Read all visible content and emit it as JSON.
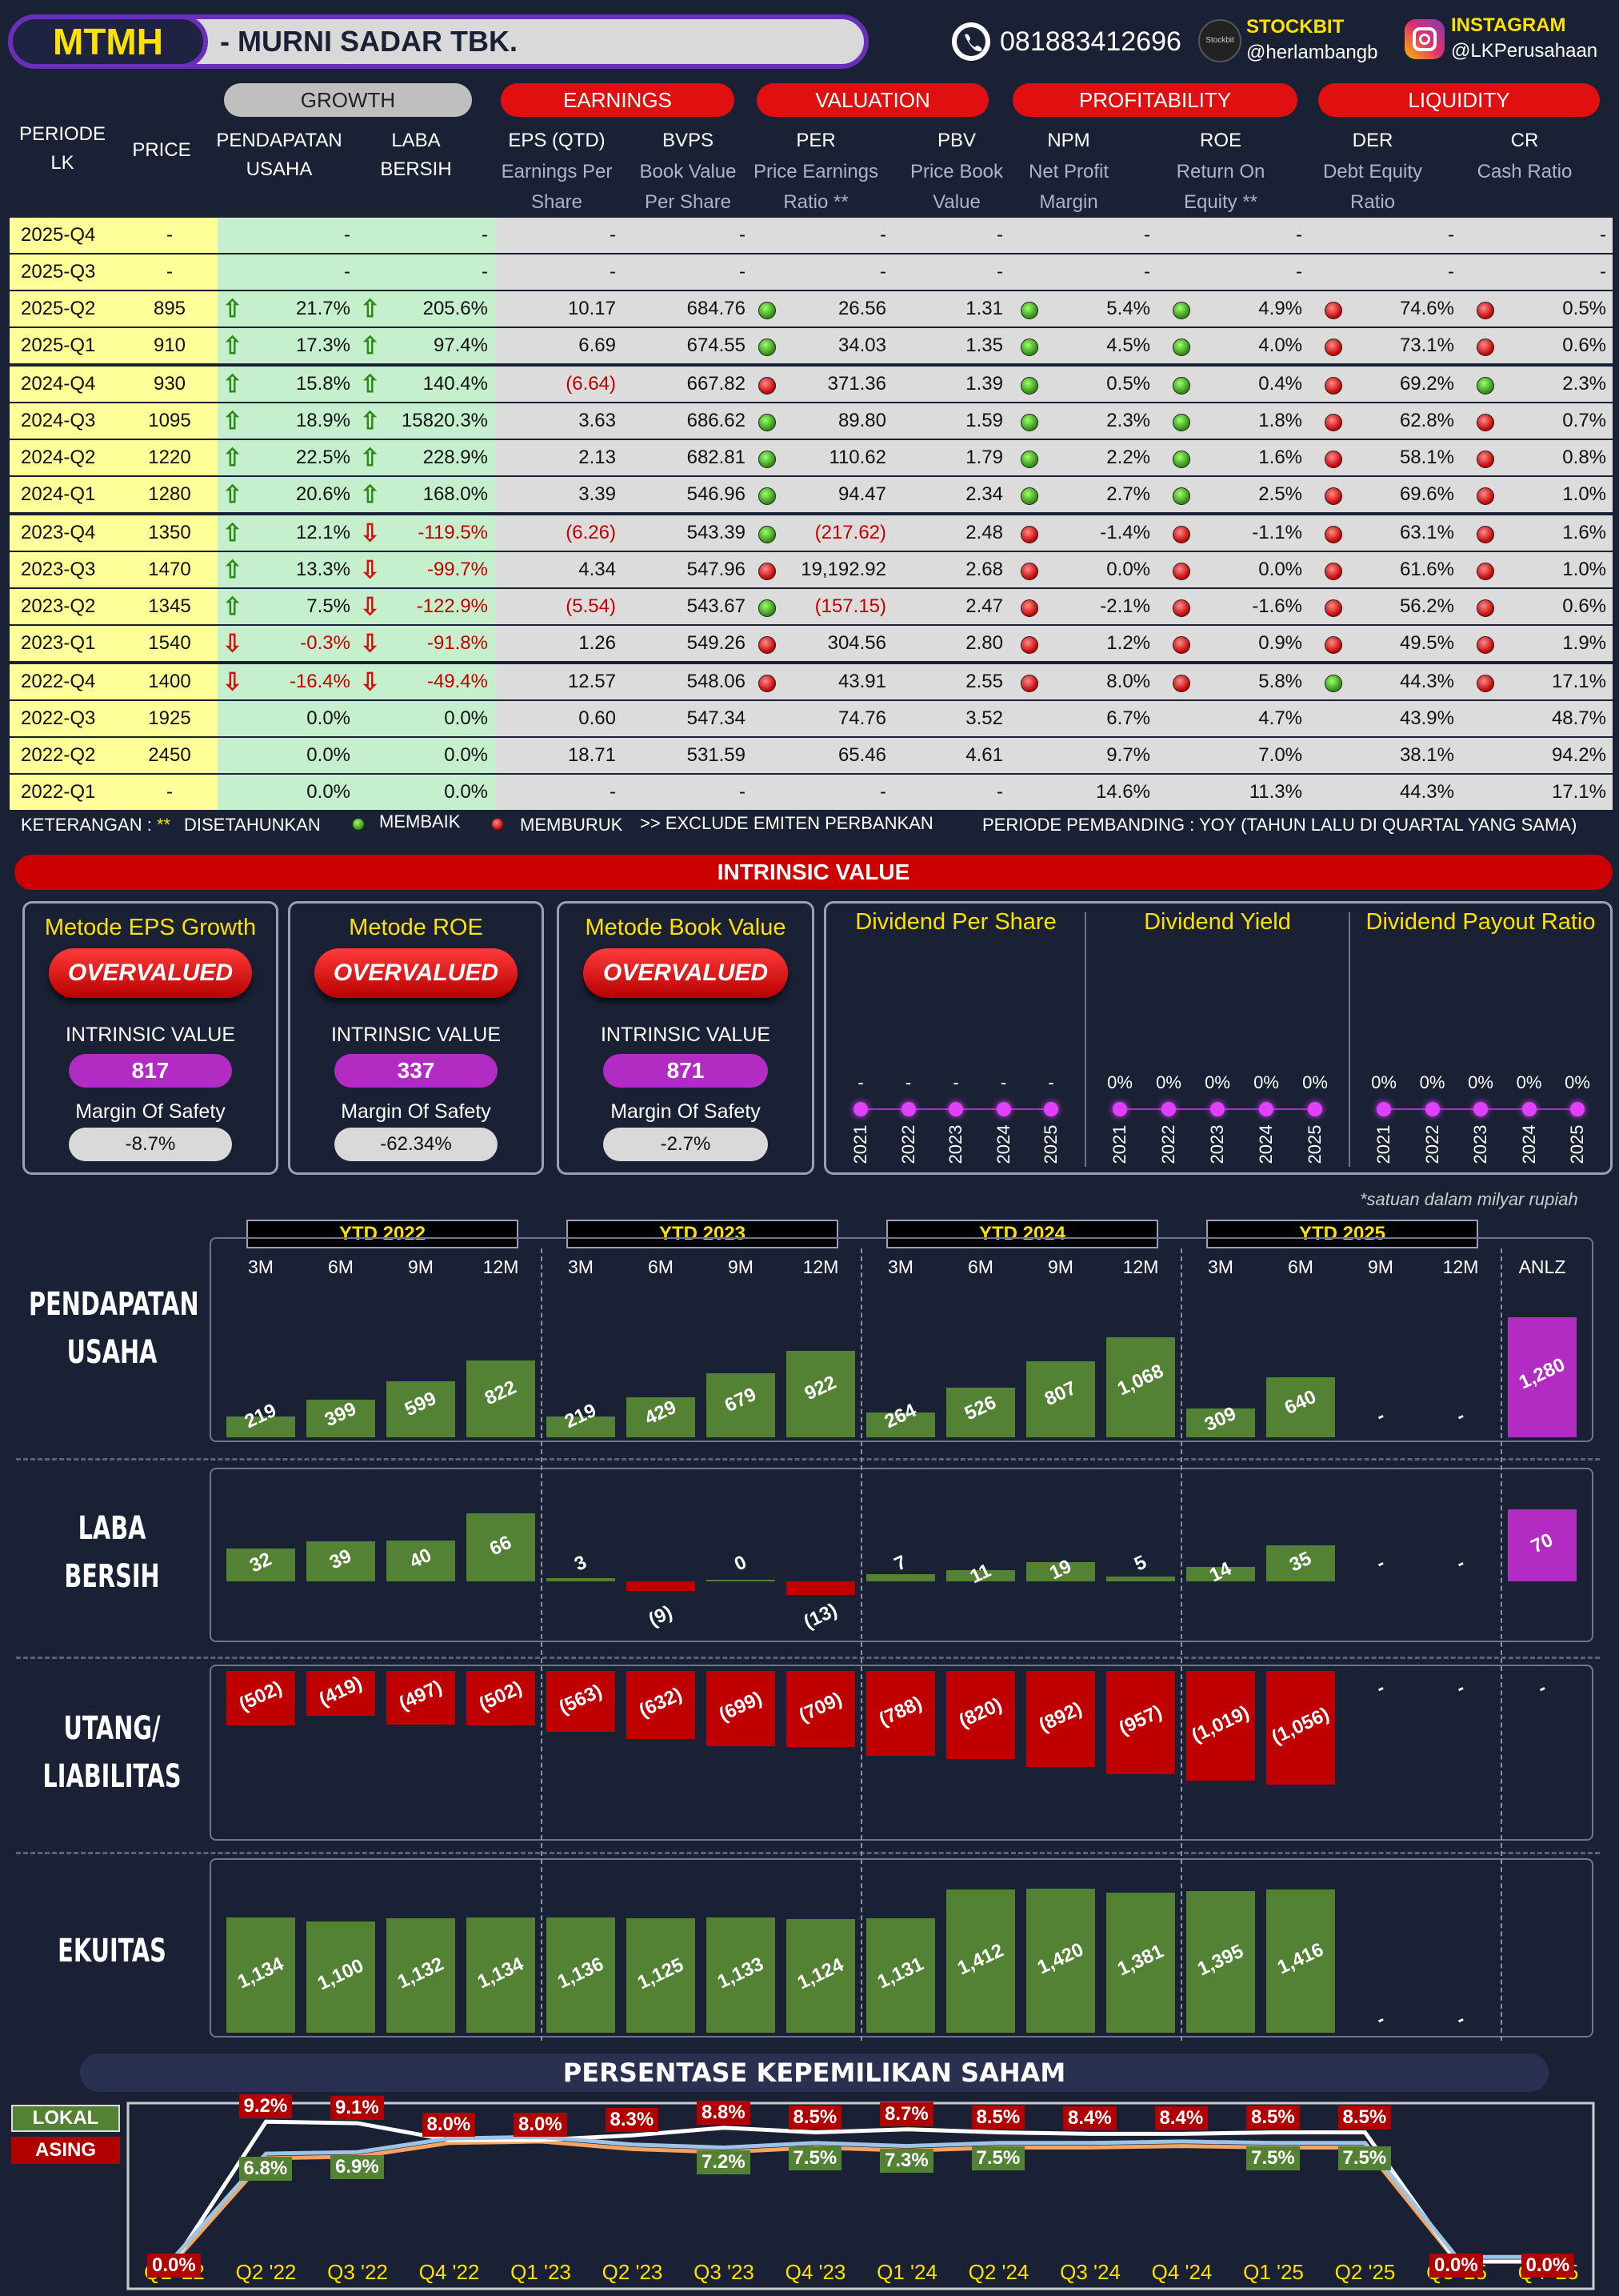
{
  "header": {
    "ticker": "MTMH",
    "company": "-  MURNI SADAR TBK.",
    "phone": "081883412696",
    "stockbit_label": "STOCKBIT",
    "stockbit_handle": "@herlambangb",
    "instagram_label": "INSTAGRAM",
    "instagram_handle": "@LKPerusahaan",
    "icons": [
      "whatsapp-icon",
      "stockbit-logo",
      "instagram-icon"
    ]
  },
  "table": {
    "groups": {
      "growth": "GROWTH",
      "earnings": "EARNINGS",
      "valuation": "VALUATION",
      "profitability": "PROFITABILITY",
      "liquidity": "LIQUIDITY"
    },
    "cols": {
      "periode": "PERIODE LK",
      "price": "PRICE",
      "pend": "PENDAPATAN USAHA",
      "laba": "LABA BERSIH",
      "eps": "EPS (QTD)",
      "eps_s": "Earnings Per Share",
      "bvps": "BVPS",
      "bvps_s": "Book Value Per Share",
      "per": "PER",
      "per_s": "Price Earnings Ratio **",
      "pbv": "PBV",
      "pbv_s": "Price Book Value",
      "npm": "NPM",
      "npm_s": "Net Profit Margin",
      "roe": "ROE",
      "roe_s": "Return On Equity **",
      "der": "DER",
      "der_s": "Debt Equity Ratio",
      "cr": "CR",
      "cr_s": "Cash Ratio"
    },
    "rows": [
      [
        "2025-Q4",
        "-",
        "",
        "-",
        "",
        "-",
        "-",
        "-",
        "",
        "-",
        "-",
        "",
        "-",
        "",
        "-",
        "",
        "-",
        "",
        "-"
      ],
      [
        "2025-Q3",
        "-",
        "",
        "-",
        "",
        "-",
        "-",
        "-",
        "",
        "-",
        "-",
        "",
        "-",
        "",
        "-",
        "",
        "-",
        "",
        "-"
      ],
      [
        "2025-Q2",
        "895",
        "u",
        "21.7%",
        "u",
        "205.6%",
        "10.17",
        "684.76",
        "g",
        "26.56",
        "1.31",
        "g",
        "5.4%",
        "g",
        "4.9%",
        "r",
        "74.6%",
        "r",
        "0.5%"
      ],
      [
        "2025-Q1",
        "910",
        "u",
        "17.3%",
        "u",
        "97.4%",
        "6.69",
        "674.55",
        "g",
        "34.03",
        "1.35",
        "g",
        "4.5%",
        "g",
        "4.0%",
        "r",
        "73.1%",
        "r",
        "0.6%"
      ],
      [
        "2024-Q4",
        "930",
        "u",
        "15.8%",
        "u",
        "140.4%",
        "(6.64)",
        "667.82",
        "r",
        "371.36",
        "1.39",
        "g",
        "0.5%",
        "g",
        "0.4%",
        "r",
        "69.2%",
        "g",
        "2.3%"
      ],
      [
        "2024-Q3",
        "1095",
        "u",
        "18.9%",
        "u",
        "15820.3%",
        "3.63",
        "686.62",
        "g",
        "89.80",
        "1.59",
        "g",
        "2.3%",
        "g",
        "1.8%",
        "r",
        "62.8%",
        "r",
        "0.7%"
      ],
      [
        "2024-Q2",
        "1220",
        "u",
        "22.5%",
        "u",
        "228.9%",
        "2.13",
        "682.81",
        "g",
        "110.62",
        "1.79",
        "g",
        "2.2%",
        "g",
        "1.6%",
        "r",
        "58.1%",
        "r",
        "0.8%"
      ],
      [
        "2024-Q1",
        "1280",
        "u",
        "20.6%",
        "u",
        "168.0%",
        "3.39",
        "546.96",
        "g",
        "94.47",
        "2.34",
        "g",
        "2.7%",
        "g",
        "2.5%",
        "r",
        "69.6%",
        "r",
        "1.0%"
      ],
      [
        "2023-Q4",
        "1350",
        "u",
        "12.1%",
        "d",
        "-119.5%",
        "(6.26)",
        "543.39",
        "g",
        "(217.62)",
        "2.48",
        "r",
        "-1.4%",
        "r",
        "-1.1%",
        "r",
        "63.1%",
        "r",
        "1.6%"
      ],
      [
        "2023-Q3",
        "1470",
        "u",
        "13.3%",
        "d",
        "-99.7%",
        "4.34",
        "547.96",
        "r",
        "19,192.92",
        "2.68",
        "r",
        "0.0%",
        "r",
        "0.0%",
        "r",
        "61.6%",
        "r",
        "1.0%"
      ],
      [
        "2023-Q2",
        "1345",
        "u",
        "7.5%",
        "d",
        "-122.9%",
        "(5.54)",
        "543.67",
        "g",
        "(157.15)",
        "2.47",
        "r",
        "-2.1%",
        "r",
        "-1.6%",
        "r",
        "56.2%",
        "r",
        "0.6%"
      ],
      [
        "2023-Q1",
        "1540",
        "d",
        "-0.3%",
        "d",
        "-91.8%",
        "1.26",
        "549.26",
        "r",
        "304.56",
        "2.80",
        "r",
        "1.2%",
        "r",
        "0.9%",
        "r",
        "49.5%",
        "r",
        "1.9%"
      ],
      [
        "2022-Q4",
        "1400",
        "d",
        "-16.4%",
        "d",
        "-49.4%",
        "12.57",
        "548.06",
        "r",
        "43.91",
        "2.55",
        "r",
        "8.0%",
        "r",
        "5.8%",
        "g",
        "44.3%",
        "r",
        "17.1%"
      ],
      [
        "2022-Q3",
        "1925",
        "",
        "0.0%",
        "",
        "0.0%",
        "0.60",
        "547.34",
        "",
        "74.76",
        "3.52",
        "",
        "6.7%",
        "",
        "4.7%",
        "",
        "43.9%",
        "",
        "48.7%"
      ],
      [
        "2022-Q2",
        "2450",
        "",
        "0.0%",
        "",
        "0.0%",
        "18.71",
        "531.59",
        "",
        "65.46",
        "4.61",
        "",
        "9.7%",
        "",
        "7.0%",
        "",
        "38.1%",
        "",
        "94.2%"
      ],
      [
        "2022-Q1",
        "-",
        "",
        "0.0%",
        "",
        "0.0%",
        "-",
        "-",
        "",
        "-",
        "-",
        "",
        "14.6%",
        "",
        "11.3%",
        "",
        "44.3%",
        "",
        "17.1%"
      ]
    ],
    "legend": {
      "k1": "KETERANGAN :",
      "k2": "**",
      "k3": "DISETAHUNKAN",
      "k4": "MEMBAIK",
      "k5": "MEMBURUK",
      "k6": ">> EXCLUDE EMITEN PERBANKAN",
      "k7": "PERIODE PEMBANDING : YOY (TAHUN LALU DI QUARTAL YANG SAMA)"
    }
  },
  "intrinsic": {
    "title": "INTRINSIC VALUE",
    "iv_label": "INTRINSIC VALUE",
    "mos_label": "Margin Of Safety",
    "cards": [
      {
        "title": "Metode EPS Growth",
        "status": "OVERVALUED",
        "iv": "817",
        "mos": "-8.7%"
      },
      {
        "title": "Metode ROE",
        "status": "OVERVALUED",
        "iv": "337",
        "mos": "-62.34%"
      },
      {
        "title": "Metode Book Value",
        "status": "OVERVALUED",
        "iv": "871",
        "mos": "-2.7%"
      }
    ],
    "dividend": [
      {
        "title": "Dividend Per Share",
        "vals": [
          "-",
          "-",
          "-",
          "-",
          "-"
        ]
      },
      {
        "title": "Dividend Yield",
        "vals": [
          "0%",
          "0%",
          "0%",
          "0%",
          "0%"
        ]
      },
      {
        "title": "Dividend Payout Ratio",
        "vals": [
          "0%",
          "0%",
          "0%",
          "0%",
          "0%"
        ]
      }
    ],
    "years": [
      "2021",
      "2022",
      "2023",
      "2024",
      "2025"
    ]
  },
  "fin": {
    "note": "*satuan dalam milyar rupiah",
    "ytd": [
      "YTD 2022",
      "YTD 2023",
      "YTD 2024",
      "YTD 2025"
    ],
    "periods": [
      "3M",
      "6M",
      "9M",
      "12M",
      "3M",
      "6M",
      "9M",
      "12M",
      "3M",
      "6M",
      "9M",
      "12M",
      "3M",
      "6M",
      "9M",
      "12M",
      "ANLZ"
    ],
    "labels": {
      "pend": "PENDAPATAN USAHA",
      "laba": "LABA BERSIH",
      "utang": "UTANG/ LIABILITAS",
      "ekuitas": "EKUITAS"
    },
    "pend": [
      "219",
      "399",
      "599",
      "822",
      "219",
      "429",
      "679",
      "922",
      "264",
      "526",
      "807",
      "1,068",
      "309",
      "640",
      "-",
      "-",
      "1,280"
    ],
    "pend_v": [
      219,
      399,
      599,
      822,
      219,
      429,
      679,
      922,
      264,
      526,
      807,
      1068,
      309,
      640,
      0,
      0,
      1280
    ],
    "laba": [
      "32",
      "39",
      "40",
      "66",
      "3",
      "(9)",
      "0",
      "(13)",
      "7",
      "11",
      "19",
      "5",
      "14",
      "35",
      "-",
      "-",
      "70"
    ],
    "laba_v": [
      32,
      39,
      40,
      66,
      3,
      -9,
      0,
      -13,
      7,
      11,
      19,
      5,
      14,
      35,
      0,
      0,
      70
    ],
    "utang": [
      "(502)",
      "(419)",
      "(497)",
      "(502)",
      "(563)",
      "(632)",
      "(699)",
      "(709)",
      "(788)",
      "(820)",
      "(892)",
      "(957)",
      "(1,019)",
      "(1,056)",
      "-",
      "-",
      "-"
    ],
    "utang_v": [
      502,
      419,
      497,
      502,
      563,
      632,
      699,
      709,
      788,
      820,
      892,
      957,
      1019,
      1056,
      0,
      0,
      0
    ],
    "ekuitas": [
      "1,134",
      "1,100",
      "1,132",
      "1,134",
      "1,136",
      "1,125",
      "1,133",
      "1,124",
      "1,131",
      "1,412",
      "1,420",
      "1,381",
      "1,395",
      "1,416",
      "-",
      "-"
    ],
    "ekuitas_v": [
      1134,
      1100,
      1132,
      1134,
      1136,
      1125,
      1133,
      1124,
      1131,
      1412,
      1420,
      1381,
      1395,
      1416,
      0,
      0
    ]
  },
  "own": {
    "title": "PERSENTASE KEPEMILIKAN SAHAM",
    "lokal": "LOKAL",
    "asing": "ASING",
    "quarters": [
      "Q1 '22",
      "Q2 '22",
      "Q3 '22",
      "Q4 '22",
      "Q1 '23",
      "Q2 '23",
      "Q3 '23",
      "Q4 '23",
      "Q1 '24",
      "Q2 '24",
      "Q3 '24",
      "Q4 '24",
      "Q1 '25",
      "Q2 '25",
      "Q3 '25",
      "Q4 '25"
    ],
    "asing_lbl": [
      "0.0%",
      "9.2%",
      "9.1%",
      "8.0%",
      "8.0%",
      "8.3%",
      "8.8%",
      "8.5%",
      "8.7%",
      "8.5%",
      "8.4%",
      "8.4%",
      "8.5%",
      "8.5%",
      "0.0%",
      "0.0%"
    ],
    "asing_v": [
      0,
      9.2,
      9.1,
      8.0,
      8.0,
      8.3,
      8.8,
      8.5,
      8.7,
      8.5,
      8.4,
      8.4,
      8.5,
      8.5,
      0,
      0
    ],
    "lokal_lbl": [
      "",
      "6.8%",
      "6.9%",
      "",
      "",
      "",
      "7.2%",
      "7.5%",
      "7.3%",
      "7.5%",
      "",
      "",
      "7.5%",
      "7.5%",
      "",
      ""
    ],
    "lokal_v": [
      0,
      6.8,
      6.9,
      7.8,
      7.9,
      7.4,
      7.2,
      7.5,
      7.3,
      7.5,
      7.5,
      7.6,
      7.5,
      7.5,
      0,
      0
    ]
  },
  "colors": {
    "green": "#548235",
    "red": "#c00000",
    "magenta": "#b22bc2",
    "yellow": "#ffe100",
    "navy": "#1b2135"
  }
}
